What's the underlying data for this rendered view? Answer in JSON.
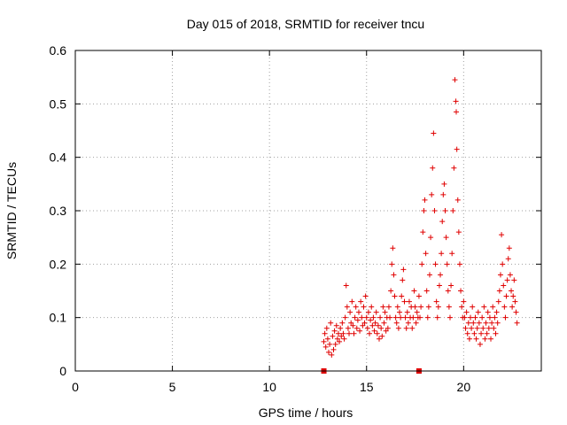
{
  "chart_data": {
    "type": "scatter",
    "title": "Day 015 of 2018, SRMTID for receiver tncu",
    "xlabel": "GPS time / hours",
    "ylabel": "SRMTID / TECUs",
    "xlim": [
      0,
      24
    ],
    "ylim": [
      0,
      0.6
    ],
    "xticks": [
      0,
      5,
      10,
      15,
      20
    ],
    "yticks": [
      0,
      0.1,
      0.2,
      0.3,
      0.4,
      0.5,
      0.6
    ],
    "xtick_labels": [
      "0",
      "5",
      "10",
      "15",
      "20"
    ],
    "ytick_labels": [
      "0",
      "0.1",
      "0.2",
      "0.3",
      "0.4",
      "0.5",
      "0.6"
    ],
    "grid": true,
    "marker": "+",
    "color": "#e00000",
    "series": [
      {
        "name": "SRMTID",
        "points": [
          [
            12.8,
            0.055
          ],
          [
            12.85,
            0.07
          ],
          [
            12.9,
            0.045
          ],
          [
            12.95,
            0.08
          ],
          [
            13.0,
            0.06
          ],
          [
            13.05,
            0.035
          ],
          [
            13.1,
            0.05
          ],
          [
            13.15,
            0.09
          ],
          [
            13.2,
            0.03
          ],
          [
            13.25,
            0.065
          ],
          [
            13.3,
            0.04
          ],
          [
            13.35,
            0.075
          ],
          [
            13.4,
            0.05
          ],
          [
            13.45,
            0.085
          ],
          [
            13.5,
            0.06
          ],
          [
            13.55,
            0.07
          ],
          [
            13.6,
            0.055
          ],
          [
            13.65,
            0.08
          ],
          [
            13.7,
            0.065
          ],
          [
            13.75,
            0.09
          ],
          [
            13.8,
            0.07
          ],
          [
            13.85,
            0.06
          ],
          [
            13.9,
            0.1
          ],
          [
            13.95,
            0.16
          ],
          [
            14.0,
            0.12
          ],
          [
            14.05,
            0.08
          ],
          [
            14.1,
            0.07
          ],
          [
            14.15,
            0.11
          ],
          [
            14.2,
            0.09
          ],
          [
            14.25,
            0.13
          ],
          [
            14.3,
            0.085
          ],
          [
            14.35,
            0.07
          ],
          [
            14.4,
            0.1
          ],
          [
            14.45,
            0.12
          ],
          [
            14.5,
            0.08
          ],
          [
            14.55,
            0.095
          ],
          [
            14.6,
            0.11
          ],
          [
            14.65,
            0.075
          ],
          [
            14.7,
            0.13
          ],
          [
            14.75,
            0.1
          ],
          [
            14.8,
            0.085
          ],
          [
            14.85,
            0.12
          ],
          [
            14.9,
            0.09
          ],
          [
            14.95,
            0.14
          ],
          [
            15.0,
            0.1
          ],
          [
            15.05,
            0.08
          ],
          [
            15.1,
            0.11
          ],
          [
            15.15,
            0.07
          ],
          [
            15.2,
            0.095
          ],
          [
            15.25,
            0.12
          ],
          [
            15.3,
            0.085
          ],
          [
            15.35,
            0.1
          ],
          [
            15.4,
            0.075
          ],
          [
            15.45,
            0.09
          ],
          [
            15.5,
            0.11
          ],
          [
            15.55,
            0.07
          ],
          [
            15.6,
            0.085
          ],
          [
            15.65,
            0.06
          ],
          [
            15.7,
            0.1
          ],
          [
            15.75,
            0.08
          ],
          [
            15.8,
            0.065
          ],
          [
            15.85,
            0.12
          ],
          [
            15.9,
            0.09
          ],
          [
            15.95,
            0.11
          ],
          [
            16.0,
            0.075
          ],
          [
            16.05,
            0.1
          ],
          [
            16.1,
            0.08
          ],
          [
            16.15,
            0.12
          ],
          [
            16.2,
            0.1
          ],
          [
            16.25,
            0.15
          ],
          [
            16.3,
            0.2
          ],
          [
            16.35,
            0.23
          ],
          [
            16.4,
            0.18
          ],
          [
            16.45,
            0.14
          ],
          [
            16.5,
            0.1
          ],
          [
            16.55,
            0.09
          ],
          [
            16.6,
            0.12
          ],
          [
            16.65,
            0.08
          ],
          [
            16.7,
            0.11
          ],
          [
            16.75,
            0.1
          ],
          [
            16.8,
            0.14
          ],
          [
            16.85,
            0.17
          ],
          [
            16.9,
            0.19
          ],
          [
            16.95,
            0.13
          ],
          [
            17.0,
            0.1
          ],
          [
            17.05,
            0.08
          ],
          [
            17.1,
            0.11
          ],
          [
            17.15,
            0.09
          ],
          [
            17.2,
            0.13
          ],
          [
            17.25,
            0.1
          ],
          [
            17.3,
            0.12
          ],
          [
            17.35,
            0.08
          ],
          [
            17.4,
            0.1
          ],
          [
            17.45,
            0.15
          ],
          [
            17.5,
            0.12
          ],
          [
            17.55,
            0.09
          ],
          [
            17.6,
            0.11
          ],
          [
            17.65,
            0.1
          ],
          [
            17.7,
            0.14
          ],
          [
            17.75,
            0.1
          ],
          [
            17.8,
            0.12
          ],
          [
            17.85,
            0.2
          ],
          [
            17.9,
            0.26
          ],
          [
            17.95,
            0.3
          ],
          [
            18.0,
            0.32
          ],
          [
            18.05,
            0.22
          ],
          [
            18.1,
            0.15
          ],
          [
            18.15,
            0.1
          ],
          [
            18.2,
            0.12
          ],
          [
            18.25,
            0.18
          ],
          [
            18.3,
            0.25
          ],
          [
            18.35,
            0.33
          ],
          [
            18.4,
            0.38
          ],
          [
            18.45,
            0.445
          ],
          [
            18.5,
            0.3
          ],
          [
            18.55,
            0.2
          ],
          [
            18.6,
            0.13
          ],
          [
            18.65,
            0.1
          ],
          [
            18.7,
            0.12
          ],
          [
            18.75,
            0.16
          ],
          [
            18.8,
            0.18
          ],
          [
            18.85,
            0.22
          ],
          [
            18.9,
            0.28
          ],
          [
            18.95,
            0.33
          ],
          [
            19.0,
            0.35
          ],
          [
            19.05,
            0.3
          ],
          [
            19.1,
            0.25
          ],
          [
            19.15,
            0.2
          ],
          [
            19.2,
            0.15
          ],
          [
            19.25,
            0.12
          ],
          [
            19.3,
            0.1
          ],
          [
            19.35,
            0.16
          ],
          [
            19.4,
            0.22
          ],
          [
            19.45,
            0.3
          ],
          [
            19.5,
            0.38
          ],
          [
            19.55,
            0.545
          ],
          [
            19.6,
            0.505
          ],
          [
            19.62,
            0.485
          ],
          [
            19.65,
            0.415
          ],
          [
            19.7,
            0.32
          ],
          [
            19.75,
            0.26
          ],
          [
            19.8,
            0.2
          ],
          [
            19.85,
            0.15
          ],
          [
            19.9,
            0.12
          ],
          [
            19.95,
            0.1
          ],
          [
            20.0,
            0.13
          ],
          [
            20.05,
            0.1
          ],
          [
            20.1,
            0.08
          ],
          [
            20.15,
            0.11
          ],
          [
            20.2,
            0.07
          ],
          [
            20.25,
            0.09
          ],
          [
            20.3,
            0.06
          ],
          [
            20.35,
            0.1
          ],
          [
            20.4,
            0.08
          ],
          [
            20.45,
            0.12
          ],
          [
            20.5,
            0.09
          ],
          [
            20.55,
            0.07
          ],
          [
            20.6,
            0.1
          ],
          [
            20.65,
            0.06
          ],
          [
            20.7,
            0.08
          ],
          [
            20.75,
            0.11
          ],
          [
            20.8,
            0.09
          ],
          [
            20.85,
            0.05
          ],
          [
            20.9,
            0.07
          ],
          [
            20.95,
            0.1
          ],
          [
            21.0,
            0.08
          ],
          [
            21.05,
            0.12
          ],
          [
            21.1,
            0.06
          ],
          [
            21.15,
            0.09
          ],
          [
            21.2,
            0.07
          ],
          [
            21.25,
            0.11
          ],
          [
            21.3,
            0.08
          ],
          [
            21.35,
            0.1
          ],
          [
            21.4,
            0.06
          ],
          [
            21.45,
            0.09
          ],
          [
            21.5,
            0.12
          ],
          [
            21.55,
            0.08
          ],
          [
            21.6,
            0.1
          ],
          [
            21.65,
            0.07
          ],
          [
            21.7,
            0.11
          ],
          [
            21.75,
            0.09
          ],
          [
            21.8,
            0.13
          ],
          [
            21.85,
            0.15
          ],
          [
            21.9,
            0.18
          ],
          [
            21.95,
            0.255
          ],
          [
            22.0,
            0.2
          ],
          [
            22.05,
            0.16
          ],
          [
            22.1,
            0.12
          ],
          [
            22.15,
            0.1
          ],
          [
            22.2,
            0.14
          ],
          [
            22.25,
            0.17
          ],
          [
            22.3,
            0.21
          ],
          [
            22.35,
            0.23
          ],
          [
            22.4,
            0.18
          ],
          [
            22.45,
            0.15
          ],
          [
            22.5,
            0.12
          ],
          [
            22.55,
            0.14
          ],
          [
            22.6,
            0.17
          ],
          [
            22.65,
            0.13
          ],
          [
            22.7,
            0.11
          ],
          [
            22.75,
            0.09
          ]
        ]
      }
    ],
    "baseline_markers": [
      12.8,
      17.7
    ]
  }
}
